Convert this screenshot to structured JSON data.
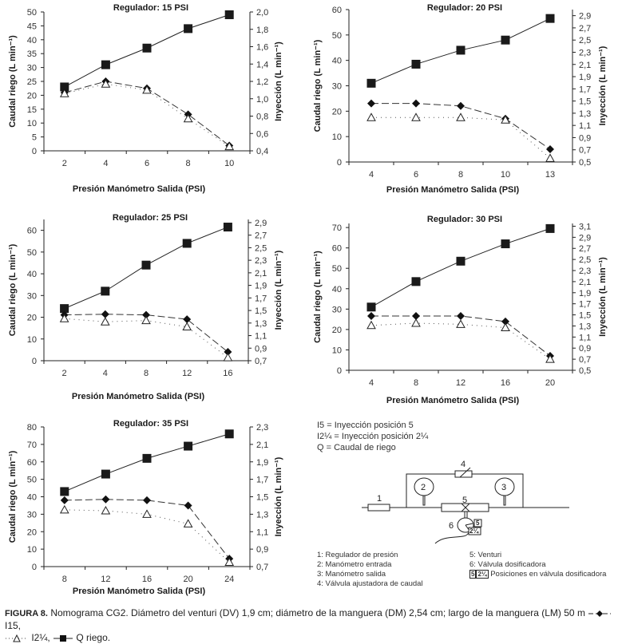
{
  "chart_data": [
    {
      "type": "line",
      "title": "Regulador: 15 PSI",
      "xlabel": "Presión Manómetro Salida (PSI)",
      "ylabel": "Caudal riego (L min⁻¹)",
      "y2label": "Inyección (L min⁻¹)",
      "categories": [
        "2",
        "4",
        "6",
        "8",
        "10"
      ],
      "ylim": [
        0,
        50
      ],
      "yticks": [
        "0",
        "5",
        "10",
        "15",
        "20",
        "25",
        "30",
        "35",
        "40",
        "45",
        "50"
      ],
      "y2lim": [
        0.4,
        2.0
      ],
      "y2ticks": [
        "0,4",
        "0,6",
        "0,8",
        "1,0",
        "1,2",
        "1,4",
        "1,6",
        "1,8",
        "2,0"
      ],
      "series": [
        {
          "name": "Q riego",
          "axis": "left",
          "values": [
            23,
            31,
            37,
            44,
            49
          ]
        },
        {
          "name": "I15",
          "axis": "right",
          "values": [
            1.07,
            1.2,
            1.12,
            0.82,
            0.46
          ]
        },
        {
          "name": "I2¼",
          "axis": "right",
          "values": [
            1.06,
            1.17,
            1.1,
            0.77,
            0.45
          ]
        }
      ]
    },
    {
      "type": "line",
      "title": "Regulador: 20 PSI",
      "xlabel": "Presión Manómetro Salida (PSI)",
      "ylabel": "Caudal riego (L min⁻¹)",
      "y2label": "Inyección (L min⁻¹)",
      "categories": [
        "4",
        "6",
        "8",
        "10",
        "13"
      ],
      "ylim": [
        0,
        60
      ],
      "yticks": [
        "0",
        "10",
        "20",
        "30",
        "40",
        "50",
        "60"
      ],
      "y2lim": [
        0.5,
        3.0
      ],
      "y2ticks": [
        "0,5",
        "0,7",
        "0,9",
        "1,1",
        "1,3",
        "1,5",
        "1,7",
        "1,9",
        "2,1",
        "2,3",
        "2,5",
        "2,7",
        "2,9"
      ],
      "series": [
        {
          "name": "Q riego",
          "axis": "left",
          "values": [
            31,
            38.5,
            44,
            48,
            56.5
          ]
        },
        {
          "name": "I15",
          "axis": "right",
          "values": [
            1.46,
            1.46,
            1.42,
            1.21,
            0.71
          ]
        },
        {
          "name": "I2¼",
          "axis": "right",
          "values": [
            1.23,
            1.23,
            1.23,
            1.19,
            0.56
          ]
        }
      ]
    },
    {
      "type": "line",
      "title": "Regulador: 25 PSI",
      "xlabel": "Presión Manómetro Salida (PSI)",
      "ylabel": "Caudal riego (L min⁻¹)",
      "y2label": "Inyección (L min⁻¹)",
      "categories": [
        "2",
        "4",
        "8",
        "12",
        "16"
      ],
      "ylim": [
        0,
        65
      ],
      "yticks": [
        "0",
        "10",
        "20",
        "30",
        "40",
        "50",
        "60"
      ],
      "y2lim": [
        0.7,
        2.95
      ],
      "y2ticks": [
        "0,7",
        "0,9",
        "1,1",
        "1,3",
        "1,5",
        "1,7",
        "1,9",
        "2,1",
        "2,3",
        "2,5",
        "2,7",
        "2,9"
      ],
      "series": [
        {
          "name": "Q riego",
          "axis": "left",
          "values": [
            24,
            32,
            44,
            54,
            61.5
          ]
        },
        {
          "name": "I15",
          "axis": "right",
          "values": [
            1.43,
            1.44,
            1.43,
            1.36,
            0.84
          ]
        },
        {
          "name": "I2¼",
          "axis": "right",
          "values": [
            1.37,
            1.32,
            1.34,
            1.24,
            0.75
          ]
        }
      ]
    },
    {
      "type": "line",
      "title": "Regulador: 30 PSI",
      "xlabel": "Presión Manómetro Salida (PSI)",
      "ylabel": "Caudal riego (L min⁻¹)",
      "y2label": "Inyección (L min⁻¹)",
      "categories": [
        "4",
        "8",
        "12",
        "16",
        "20"
      ],
      "ylim": [
        0,
        72
      ],
      "yticks": [
        "0",
        "10",
        "20",
        "30",
        "40",
        "50",
        "60",
        "70"
      ],
      "y2lim": [
        0.5,
        3.15
      ],
      "y2ticks": [
        "0,5",
        "0,7",
        "0,9",
        "1,1",
        "1,3",
        "1,5",
        "1,7",
        "1,9",
        "2,1",
        "2,3",
        "2,5",
        "2,7",
        "2,9",
        "3,1"
      ],
      "series": [
        {
          "name": "Q riego",
          "axis": "left",
          "values": [
            31,
            43.5,
            53.5,
            62,
            69.5
          ]
        },
        {
          "name": "I15",
          "axis": "right",
          "values": [
            1.48,
            1.48,
            1.48,
            1.38,
            0.76
          ]
        },
        {
          "name": "I2¼",
          "axis": "right",
          "values": [
            1.31,
            1.35,
            1.33,
            1.27,
            0.7
          ]
        }
      ]
    },
    {
      "type": "line",
      "title": "Regulador: 35 PSI",
      "xlabel": "Presión Manómetro Salida (PSI)",
      "ylabel": "Caudal riego (L min⁻¹)",
      "y2label": "Inyección (L min⁻¹)",
      "categories": [
        "8",
        "12",
        "16",
        "20",
        "24"
      ],
      "ylim": [
        0,
        80
      ],
      "yticks": [
        "0",
        "10",
        "20",
        "30",
        "40",
        "50",
        "60",
        "70",
        "80"
      ],
      "y2lim": [
        0.7,
        2.3
      ],
      "y2ticks": [
        "0,7",
        "0,9",
        "1,1",
        "1,3",
        "1,5",
        "1,7",
        "1,9",
        "2,1",
        "2,3"
      ],
      "series": [
        {
          "name": "Q riego",
          "axis": "left",
          "values": [
            43,
            53,
            62,
            69,
            76
          ]
        },
        {
          "name": "I15",
          "axis": "right",
          "values": [
            1.46,
            1.47,
            1.46,
            1.4,
            0.79
          ]
        },
        {
          "name": "I2¼",
          "axis": "right",
          "values": [
            1.35,
            1.34,
            1.3,
            1.19,
            0.75
          ]
        }
      ]
    }
  ],
  "legend": {
    "line1": "I5 = Inyección posición 5",
    "line2": "I2¼ = Inyección posición 2¼",
    "line3": "Q = Caudal de riego"
  },
  "diagram": {
    "labels": [
      "1",
      "2",
      "3",
      "4",
      "5",
      "6"
    ],
    "pos5": "5",
    "pos214": "2¼"
  },
  "parts": {
    "p1": "1: Regulador de presión",
    "p2": "2: Manómetro entrada",
    "p3": "3: Manómetro salida",
    "p4": "4: Válvula ajustadora de caudal",
    "p5": "5: Venturi",
    "p6": "6: Válvula dosificadora",
    "p7_box1": "5",
    "p7_box2": "2¼",
    "p7": "Posiciones en válvula dosificadora"
  },
  "caption": {
    "label": "FIGURA 8.",
    "text": "Nomograma CG2. Diámetro del venturi (DV) 1,9 cm; diámetro de la manguera (DM) 2,54 cm; largo de la manguera (LM) 50 m",
    "leg_i15": "I15,",
    "leg_i214": "I2¼,",
    "leg_q": "Q riego."
  }
}
